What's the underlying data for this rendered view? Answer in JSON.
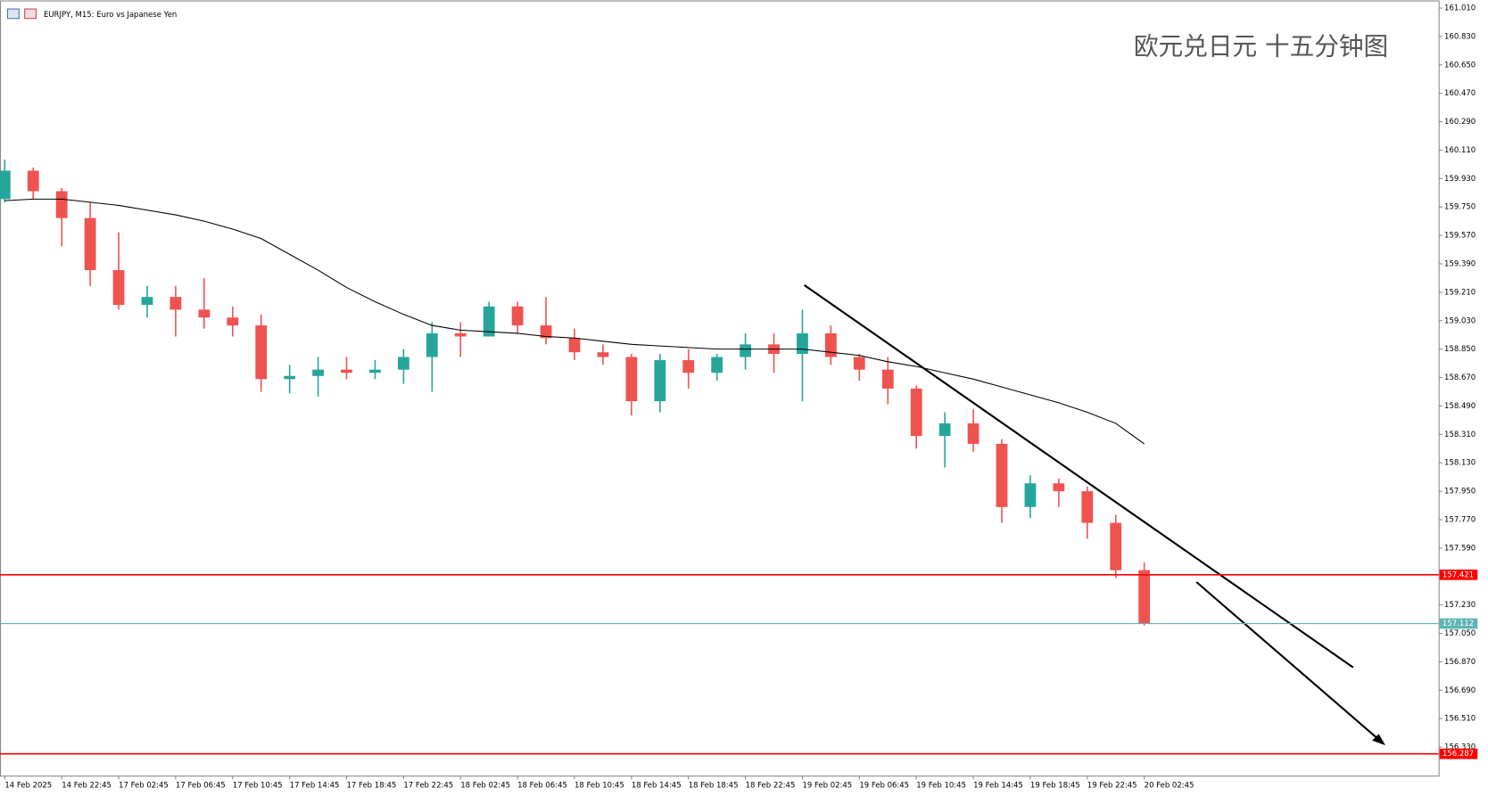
{
  "chart_data": {
    "type": "candlestick",
    "header": "EURJPY, M15:  Euro vs Japanese Yen",
    "title": "欧元兑日元 十五分钟图",
    "up_color": "#26a69a",
    "down_color": "#ef5350",
    "categories": [
      "14 Feb 2025",
      null,
      "14 Feb 22:45",
      null,
      "17 Feb 02:45",
      null,
      "17 Feb 06:45",
      null,
      "17 Feb 10:45",
      null,
      "17 Feb 14:45",
      null,
      "17 Feb 18:45",
      null,
      "17 Feb 22:45",
      null,
      "18 Feb 02:45",
      null,
      "18 Feb 06:45",
      null,
      "18 Feb 10:45",
      null,
      "18 Feb 14:45",
      null,
      "18 Feb 18:45",
      null,
      "18 Feb 22:45",
      null,
      "19 Feb 02:45",
      null,
      "19 Feb 06:45",
      null,
      "19 Feb 10:45",
      null,
      "19 Feb 14:45",
      null,
      "19 Feb 18:45",
      null,
      "19 Feb 22:45",
      null,
      "20 Feb 02:45"
    ],
    "open": [
      159.8,
      159.98,
      159.85,
      159.68,
      159.35,
      159.13,
      159.18,
      159.1,
      159.05,
      159.0,
      158.66,
      158.68,
      158.72,
      158.7,
      158.72,
      158.8,
      158.95,
      158.93,
      159.12,
      159.0,
      158.92,
      158.83,
      158.8,
      158.52,
      158.78,
      158.7,
      158.8,
      158.88,
      158.82,
      158.95,
      158.8,
      158.72,
      158.6,
      158.3,
      158.38,
      158.25,
      157.85,
      158.0,
      157.95,
      157.75,
      157.45
    ],
    "high": [
      160.05,
      160.0,
      159.87,
      159.78,
      159.59,
      159.25,
      159.25,
      159.3,
      159.12,
      159.07,
      158.75,
      158.8,
      158.8,
      158.78,
      158.85,
      159.02,
      159.02,
      159.15,
      159.15,
      159.18,
      158.98,
      158.88,
      158.82,
      158.82,
      158.85,
      158.82,
      158.95,
      158.95,
      159.1,
      159.0,
      158.82,
      158.8,
      158.62,
      158.45,
      158.47,
      158.28,
      158.05,
      158.03,
      157.98,
      157.8,
      157.5
    ],
    "low": [
      159.78,
      159.8,
      159.5,
      159.25,
      159.1,
      159.05,
      158.93,
      158.98,
      158.93,
      158.58,
      158.57,
      158.55,
      158.66,
      158.66,
      158.63,
      158.58,
      158.8,
      158.93,
      158.95,
      158.88,
      158.78,
      158.75,
      158.43,
      158.45,
      158.6,
      158.65,
      158.72,
      158.7,
      158.52,
      158.75,
      158.65,
      158.5,
      158.22,
      158.1,
      158.2,
      157.75,
      157.78,
      157.85,
      157.65,
      157.4,
      157.1
    ],
    "close": [
      159.98,
      159.85,
      159.68,
      159.35,
      159.13,
      159.18,
      159.1,
      159.05,
      159.0,
      158.66,
      158.68,
      158.72,
      158.7,
      158.72,
      158.8,
      158.95,
      158.93,
      159.12,
      159.0,
      158.92,
      158.83,
      158.8,
      158.52,
      158.78,
      158.7,
      158.8,
      158.88,
      158.82,
      158.95,
      158.8,
      158.72,
      158.6,
      158.3,
      158.38,
      158.25,
      157.85,
      158.0,
      157.95,
      157.75,
      157.45,
      157.11
    ],
    "moving_average": {
      "color": "#000000",
      "values": [
        159.79,
        159.8,
        159.8,
        159.78,
        159.76,
        159.73,
        159.7,
        159.66,
        159.61,
        159.55,
        159.45,
        159.35,
        159.24,
        159.15,
        159.07,
        159.0,
        158.97,
        158.96,
        158.95,
        158.93,
        158.92,
        158.9,
        158.88,
        158.87,
        158.86,
        158.85,
        158.85,
        158.85,
        158.85,
        158.83,
        158.81,
        158.77,
        158.74,
        158.7,
        158.66,
        158.61,
        158.56,
        158.51,
        158.45,
        158.38,
        158.25
      ]
    },
    "levels": [
      {
        "value": 157.421,
        "color": "#ff0000"
      },
      {
        "value": 157.112,
        "color": "#5fb3b3"
      },
      {
        "value": 156.287,
        "color": "#ff0000"
      }
    ],
    "ylim": [
      156.149,
      161.058
    ],
    "yticks": [
      {
        "value": 161.01,
        "label": "161.010"
      },
      {
        "value": 160.83,
        "label": "160.830"
      },
      {
        "value": 160.65,
        "label": "160.650"
      },
      {
        "value": 160.47,
        "label": "160.470"
      },
      {
        "value": 160.29,
        "label": "160.290"
      },
      {
        "value": 160.11,
        "label": "160.110"
      },
      {
        "value": 159.93,
        "label": "159.930"
      },
      {
        "value": 159.75,
        "label": "159.750"
      },
      {
        "value": 159.57,
        "label": "159.570"
      },
      {
        "value": 159.39,
        "label": "159.390"
      },
      {
        "value": 159.21,
        "label": "159.210"
      },
      {
        "value": 159.03,
        "label": "159.030"
      },
      {
        "value": 158.85,
        "label": "158.850"
      },
      {
        "value": 158.67,
        "label": "158.670"
      },
      {
        "value": 158.49,
        "label": "158.490"
      },
      {
        "value": 158.31,
        "label": "158.310"
      },
      {
        "value": 158.13,
        "label": "158.130"
      },
      {
        "value": 157.95,
        "label": "157.950"
      },
      {
        "value": 157.77,
        "label": "157.770"
      },
      {
        "value": 157.59,
        "label": "157.590"
      },
      {
        "value": 157.23,
        "label": "157.230"
      },
      {
        "value": 157.05,
        "label": "157.050"
      },
      {
        "value": 156.87,
        "label": "156.870"
      },
      {
        "value": 156.69,
        "label": "156.690"
      },
      {
        "value": 156.51,
        "label": "156.510"
      },
      {
        "value": 156.33,
        "label": "156.330"
      }
    ]
  }
}
